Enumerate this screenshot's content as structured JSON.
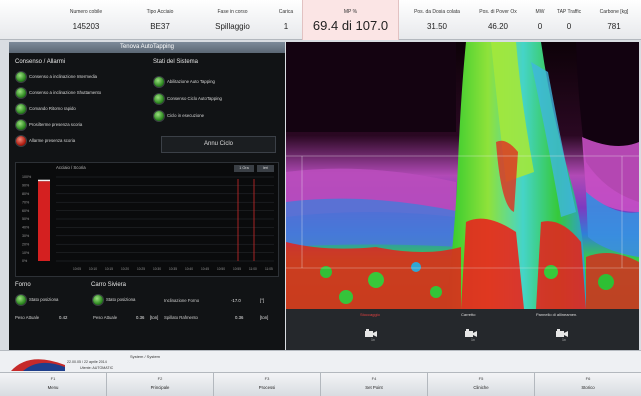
{
  "stats": [
    {
      "label": "Numero cobile",
      "value": "145203"
    },
    {
      "label": "Tipo Acciaio",
      "value": "BE37"
    },
    {
      "label": "Fase in corso",
      "value": "Spillaggio"
    },
    {
      "label": "Carica",
      "value": "1"
    },
    {
      "label": "MP %",
      "value": "69.4 di 107.0",
      "highlight": true
    },
    {
      "label": "Pos. da Dosia colata",
      "value": "31.50"
    },
    {
      "label": "Pos. di Pover Ox",
      "value": "46.20"
    },
    {
      "label": "MW",
      "value": "0"
    },
    {
      "label": "TAP Traffic",
      "value": "0"
    },
    {
      "label": "Carbone [kg]",
      "value": "781"
    }
  ],
  "left_panel": {
    "title": "Tenova AutoTapping",
    "alarms_heading": "Consenso / Allarmi",
    "system_heading": "Stati del Sistema",
    "alarms": [
      {
        "label": "Consenso a inclinazione Intermedia",
        "status": "green"
      },
      {
        "label": "Consenso a inclinazione Shuttamento",
        "status": "green"
      },
      {
        "label": "Comando Ritorno rapido",
        "status": "green"
      },
      {
        "label": "Prosilterme presenza scoria",
        "status": "green"
      },
      {
        "label": "Allarme presenza scoria",
        "status": "red"
      }
    ],
    "system_states": [
      {
        "label": "Abilitazione Auto Tapping",
        "status": "green"
      },
      {
        "label": "Consenso Ciclo AutoTapping",
        "status": "green"
      },
      {
        "label": "Ciclo in esecuzione",
        "status": "green"
      }
    ],
    "cancel_button": "Annu Ciclo",
    "chart_title": "Acciaio / Scoria",
    "zoom_label": "1 Ora",
    "more_label": "Ieri",
    "forno_heading": "Forno",
    "carro_heading": "Carro Siviera",
    "forno_state": "Stato posiziona",
    "carro_state": "Stato posiziona",
    "incl_label": "Inclinazione Forno",
    "incl_value": "-17.0",
    "incl_unit": "[°]",
    "peso_forno_label": "Peso Attuale",
    "peso_forno_value": "0.42",
    "peso_carro_label": "Peso Attuale",
    "peso_carro_value": "0.36",
    "peso_carro_unit": "[ton]",
    "spillato_label": "Spillato Rafmento",
    "spillato_value": "0.36",
    "spillato_unit": "[ton]"
  },
  "chart_data": {
    "type": "bar",
    "title": "Acciaio / Scoria",
    "y_ticks": [
      "100%",
      "90%",
      "80%",
      "70%",
      "60%",
      "50%",
      "40%",
      "30%",
      "20%",
      "10%",
      "0%"
    ],
    "ylim": [
      0,
      100
    ],
    "x_ticks": [
      "10:05",
      "10:10",
      "10:15",
      "10:20",
      "10:25",
      "10:30",
      "10:35",
      "10:40",
      "10:45",
      "10:50",
      "10:55",
      "11:00",
      "11:05"
    ],
    "level": 95,
    "series_colors": {
      "level": "#d42020",
      "marker": "#cc2a2a",
      "grid": "#2a2e33"
    },
    "markers_x": [
      "10:55",
      "11:00"
    ]
  },
  "right_bar": {
    "items": [
      {
        "label": "Stoccaggio",
        "sub": "1x",
        "red": true
      },
      {
        "label": "Carretto",
        "sub": "1x",
        "red": false
      },
      {
        "label": "Pannello di allineamen.",
        "sub": "1x",
        "red": false
      }
    ]
  },
  "status_bar": {
    "system": "System / System",
    "line1": "22.00.05 / 22 aprile 2014",
    "line2": "Utente: AUTOMATIC"
  },
  "function_keys": [
    {
      "key": "F1",
      "label": "Menu"
    },
    {
      "key": "F2",
      "label": "Principale"
    },
    {
      "key": "F3",
      "label": "Processi"
    },
    {
      "key": "F4",
      "label": "Set Point"
    },
    {
      "key": "F5",
      "label": "Cliniche"
    },
    {
      "key": "F6",
      "label": "Storico"
    }
  ],
  "colors": {
    "accent": "#d42020",
    "panel": "#111315",
    "title_bar": "#6a7785"
  }
}
